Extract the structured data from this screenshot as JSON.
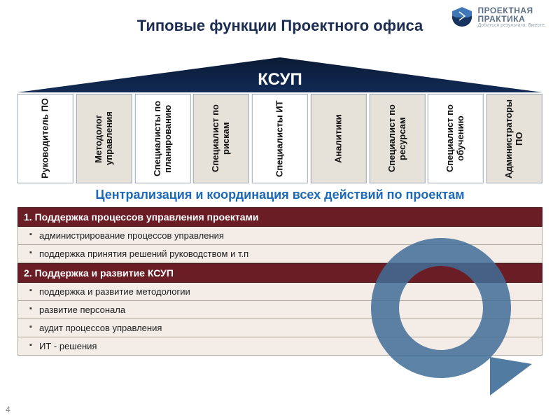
{
  "logo": {
    "line1": "ПРОЕКТНАЯ",
    "line2": "ПРАКТИКА",
    "tagline": "Добиться результата. Вместе.",
    "mark_top_color": "#3f77b8",
    "mark_bottom_color": "#16345f"
  },
  "title": "Типовые функции Проектного офиса",
  "roof_label": "КСУП",
  "roof_gradient_top": "#0a1a35",
  "roof_gradient_bottom": "#122a55",
  "pillars": [
    {
      "label": "Руководитель ПО",
      "alt": false
    },
    {
      "label": "Методолог управления",
      "alt": true
    },
    {
      "label": "Специалисты по планированию",
      "alt": false
    },
    {
      "label": "Специалист по рискам",
      "alt": true
    },
    {
      "label": "Специалисты ИТ",
      "alt": false
    },
    {
      "label": "Аналитики",
      "alt": true
    },
    {
      "label": "Специалист по ресурсам",
      "alt": true
    },
    {
      "label": "Специалист по обучению",
      "alt": false
    },
    {
      "label": "Администраторы ПО",
      "alt": true
    }
  ],
  "pillar_alt_bg": "#e6e2da",
  "pillar_plain_bg": "#ffffff",
  "pillar_border": "#9ca6b8",
  "subtitle": "Централизация и координация всех действий по проектам",
  "subtitle_color": "#1b69b8",
  "sections": [
    {
      "heading": "1. Поддержка процессов управления проектами",
      "items": [
        "администрирование процессов управления",
        "поддержка принятия решений руководством и т.п"
      ]
    },
    {
      "heading": "2. Поддержка и развитие КСУП",
      "items": [
        "поддержка и развитие методологии",
        "развитие персонала",
        "аудит процессов управления",
        "ИТ - решения"
      ]
    }
  ],
  "section_head_bg": "#6b1d26",
  "section_head_fg": "#ffffff",
  "section_item_bg": "#f3ece7",
  "section_item_border": "#b0a79d",
  "arrow_color": "#3f6d97",
  "slide_number": "4"
}
